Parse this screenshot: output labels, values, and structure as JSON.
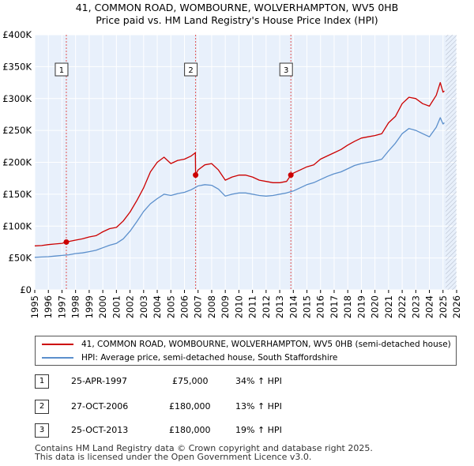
{
  "title_line1": "41, COMMON ROAD, WOMBOURNE, WOLVERHAMPTON, WV5 0HB",
  "title_line2": "Price paid vs. HM Land Registry's House Price Index (HPI)",
  "legend": {
    "property_label": "41, COMMON ROAD, WOMBOURNE, WOLVERHAMPTON, WV5 0HB (semi-detached house)",
    "hpi_label": "HPI: Average price, semi-detached house, South Staffordshire"
  },
  "transactions": [
    {
      "num": "1",
      "date": "25-APR-1997",
      "price": "£75,000",
      "hpi_change": "34% ↑ HPI"
    },
    {
      "num": "2",
      "date": "27-OCT-2006",
      "price": "£180,000",
      "hpi_change": "13% ↑ HPI"
    },
    {
      "num": "3",
      "date": "25-OCT-2013",
      "price": "£180,000",
      "hpi_change": "19% ↑ HPI"
    }
  ],
  "footer_line1": "Contains HM Land Registry data © Crown copyright and database right 2025.",
  "footer_line2": "This data is licensed under the Open Government Licence v3.0.",
  "colors": {
    "property": "#cc0000",
    "hpi": "#5b8fcc",
    "plot_bg": "#e8f0fb",
    "sale_line": "#e05050",
    "grid": "#ffffff"
  },
  "chart_data": {
    "type": "line",
    "title": "41, COMMON ROAD, WOMBOURNE, WOLVERHAMPTON, WV5 0HB",
    "subtitle": "Price paid vs. HM Land Registry's House Price Index (HPI)",
    "xlabel": "",
    "ylabel": "",
    "xlim": [
      1995,
      2026
    ],
    "ylim": [
      0,
      400000
    ],
    "y_ticks": [
      0,
      50000,
      100000,
      150000,
      200000,
      250000,
      300000,
      350000,
      400000
    ],
    "y_tick_labels": [
      "£0",
      "£50K",
      "£100K",
      "£150K",
      "£200K",
      "£250K",
      "£300K",
      "£350K",
      "£400K"
    ],
    "x_ticks": [
      1995,
      1996,
      1997,
      1998,
      1999,
      2000,
      2001,
      2002,
      2003,
      2004,
      2005,
      2006,
      2007,
      2008,
      2009,
      2010,
      2011,
      2012,
      2013,
      2014,
      2015,
      2016,
      2017,
      2018,
      2019,
      2020,
      2021,
      2022,
      2023,
      2024,
      2025,
      2026
    ],
    "x_tick_labels": [
      "1995",
      "1996",
      "1997",
      "1998",
      "1999",
      "2000",
      "2001",
      "2002",
      "2003",
      "2004",
      "2005",
      "2006",
      "2007",
      "2008",
      "2009",
      "2010",
      "2011",
      "2012",
      "2013",
      "2014",
      "2015",
      "2016",
      "2017",
      "2018",
      "2019",
      "2020",
      "2021",
      "2022",
      "2023",
      "2024",
      "2025",
      "2026"
    ],
    "grid": true,
    "forecast_start": 2025.2,
    "sales": [
      {
        "label": "1",
        "x": 1997.32,
        "y": 75000
      },
      {
        "label": "2",
        "x": 2006.82,
        "y": 180000
      },
      {
        "label": "3",
        "x": 2013.82,
        "y": 180000
      }
    ],
    "series": [
      {
        "name": "41, COMMON ROAD, WOMBOURNE, WOLVERHAMPTON, WV5 0HB (semi-detached house)",
        "x": [
          1995,
          1995.5,
          1996,
          1996.5,
          1997,
          1997.32,
          1998,
          1998.5,
          1999,
          1999.5,
          2000,
          2000.5,
          2001,
          2001.5,
          2002,
          2002.5,
          2003,
          2003.5,
          2004,
          2004.5,
          2005,
          2005.5,
          2006,
          2006.5,
          2006.8,
          2006.82,
          2007,
          2007.5,
          2008,
          2008.5,
          2009,
          2009.5,
          2010,
          2010.5,
          2011,
          2011.5,
          2012,
          2012.5,
          2013,
          2013.5,
          2013.82,
          2014,
          2014.5,
          2015,
          2015.5,
          2016,
          2016.5,
          2017,
          2017.5,
          2018,
          2018.5,
          2019,
          2019.5,
          2020,
          2020.5,
          2021,
          2021.5,
          2022,
          2022.5,
          2023,
          2023.5,
          2024,
          2024.5,
          2024.8,
          2025,
          2025.1
        ],
        "y": [
          69000,
          69500,
          71000,
          72000,
          73000,
          75000,
          78000,
          80000,
          83000,
          85000,
          91000,
          96000,
          98000,
          108000,
          122000,
          140000,
          160000,
          185000,
          200000,
          208000,
          198000,
          203000,
          205000,
          210000,
          215000,
          180000,
          188000,
          196000,
          198000,
          188000,
          172000,
          177000,
          180000,
          180000,
          177000,
          172000,
          170000,
          168000,
          168000,
          170000,
          180000,
          183000,
          188000,
          193000,
          196000,
          205000,
          210000,
          215000,
          220000,
          227000,
          233000,
          238000,
          240000,
          242000,
          245000,
          262000,
          272000,
          292000,
          302000,
          300000,
          292000,
          288000,
          305000,
          325000,
          310000,
          312000
        ]
      },
      {
        "name": "HPI: Average price, semi-detached house, South Staffordshire",
        "x": [
          1995,
          1995.5,
          1996,
          1996.5,
          1997,
          1997.5,
          1998,
          1998.5,
          1999,
          1999.5,
          2000,
          2000.5,
          2001,
          2001.5,
          2002,
          2002.5,
          2003,
          2003.5,
          2004,
          2004.5,
          2005,
          2005.5,
          2006,
          2006.5,
          2007,
          2007.5,
          2008,
          2008.5,
          2009,
          2009.5,
          2010,
          2010.5,
          2011,
          2011.5,
          2012,
          2012.5,
          2013,
          2013.5,
          2014,
          2014.5,
          2015,
          2015.5,
          2016,
          2016.5,
          2017,
          2017.5,
          2018,
          2018.5,
          2019,
          2019.5,
          2020,
          2020.5,
          2021,
          2021.5,
          2022,
          2022.5,
          2023,
          2023.5,
          2024,
          2024.5,
          2024.8,
          2025,
          2025.1
        ],
        "y": [
          51000,
          51500,
          52000,
          53000,
          54000,
          55000,
          57000,
          58000,
          60000,
          62000,
          66000,
          70000,
          73000,
          80000,
          92000,
          107000,
          123000,
          135000,
          143000,
          150000,
          148000,
          151000,
          153000,
          157000,
          163000,
          165000,
          164000,
          158000,
          147000,
          150000,
          152000,
          152000,
          150000,
          148000,
          147000,
          148000,
          150000,
          152000,
          155000,
          160000,
          165000,
          168000,
          173000,
          178000,
          182000,
          185000,
          190000,
          195000,
          198000,
          200000,
          202000,
          205000,
          218000,
          230000,
          245000,
          253000,
          250000,
          245000,
          240000,
          255000,
          270000,
          260000,
          262000
        ]
      }
    ]
  }
}
